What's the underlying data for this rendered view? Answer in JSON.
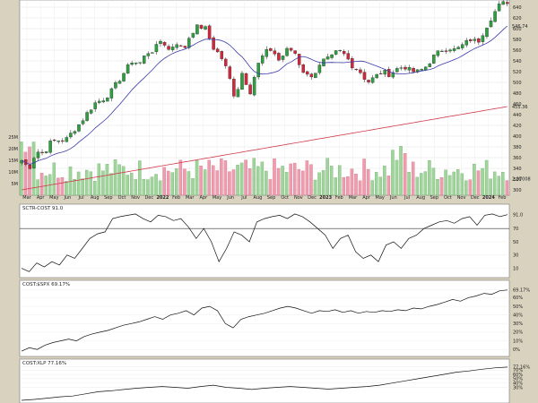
{
  "chart_data": [
    {
      "type": "candlestick",
      "panel": "price",
      "axis_labels": {
        "right": [
          "640",
          "620",
          "600",
          "580",
          "560",
          "540",
          "520",
          "500",
          "480",
          "460",
          "440",
          "420",
          "400",
          "380",
          "360",
          "340",
          "320",
          "300"
        ]
      },
      "ylim": [
        290,
        650
      ],
      "overlays": [
        {
          "name": "sma-50",
          "color": "#3a3aa8",
          "last_value": "546.74"
        },
        {
          "name": "sma-200",
          "color": "#d23a4a",
          "last_value": "455.36"
        }
      ],
      "volume": {
        "ticks_left": [
          "20M",
          "15M",
          "10M",
          "5M",
          "25M"
        ],
        "last_value": "2.07008",
        "tick_labels_left_order": [
          "25M",
          "20M",
          "15M",
          "10M",
          "5M"
        ],
        "ylim": [
          0,
          30
        ]
      },
      "x_labels": [
        "Mar",
        "Apr",
        "May",
        "Jun",
        "Jul",
        "Aug",
        "Sep",
        "Oct",
        "Nov",
        "Dec",
        "2022",
        "Feb",
        "Mar",
        "Apr",
        "May",
        "Jun",
        "Jul",
        "Aug",
        "Sep",
        "Oct",
        "Nov",
        "Dec",
        "2023",
        "Feb",
        "Mar",
        "Apr",
        "May",
        "Jun",
        "Jul",
        "Aug",
        "Sep",
        "Oct",
        "Nov",
        "Dec",
        "2024",
        "Feb"
      ],
      "close_path": [
        355,
        340,
        372,
        368,
        390,
        392,
        393,
        410,
        425,
        445,
        462,
        468,
        480,
        500,
        520,
        540,
        535,
        555,
        560,
        580,
        560,
        575,
        560,
        592,
        605,
        600,
        565,
        550,
        520,
        470,
        520,
        480,
        530,
        555,
        562,
        540,
        560,
        560,
        525,
        510,
        520,
        540,
        545,
        560,
        550,
        530,
        520,
        500,
        510,
        520,
        515,
        525,
        530,
        520,
        520,
        530,
        548,
        560,
        565,
        560,
        570,
        580,
        575,
        600,
        625,
        645,
        650
      ],
      "close_values_note": ""
    },
    {
      "type": "line",
      "panel": "sctr",
      "title": "SCTR-COST 91.0",
      "right_labels": [
        "91.0",
        "70",
        "50",
        "30",
        "10"
      ],
      "reference_line": 70,
      "ylim": [
        0,
        100
      ],
      "values": [
        10,
        5,
        18,
        12,
        20,
        15,
        30,
        25,
        40,
        55,
        62,
        65,
        85,
        88,
        90,
        92,
        85,
        80,
        90,
        88,
        82,
        85,
        72,
        55,
        70,
        50,
        20,
        40,
        65,
        60,
        50,
        80,
        85,
        88,
        90,
        85,
        92,
        88,
        80,
        70,
        60,
        40,
        55,
        60,
        35,
        25,
        30,
        20,
        45,
        50,
        40,
        55,
        60,
        70,
        75,
        80,
        82,
        78,
        85,
        88,
        75,
        90,
        92,
        88,
        91
      ]
    },
    {
      "type": "line",
      "panel": "ratio-spx",
      "title": "COST:$SPX 69.17%",
      "right_labels": [
        "69.17%",
        "60%",
        "50%",
        "40%",
        "30%",
        "20%",
        "10%",
        "0%"
      ],
      "ylim": [
        -5,
        75
      ],
      "values": [
        -2,
        2,
        0,
        5,
        8,
        10,
        12,
        10,
        15,
        18,
        20,
        22,
        25,
        28,
        30,
        32,
        35,
        38,
        35,
        40,
        42,
        45,
        40,
        48,
        50,
        45,
        30,
        25,
        35,
        38,
        40,
        42,
        45,
        48,
        50,
        48,
        45,
        42,
        45,
        44,
        46,
        43,
        45,
        42,
        44,
        43,
        45,
        44,
        46,
        45,
        48,
        47,
        50,
        52,
        55,
        58,
        56,
        60,
        62,
        65,
        64,
        68,
        69
      ]
    },
    {
      "type": "line",
      "panel": "ratio-xlp",
      "title": "COST:XLP 77.16%",
      "right_labels": [
        "77.16%",
        "70%",
        "60%",
        "50%",
        "40%",
        "30%"
      ],
      "ylim": [
        0,
        85
      ],
      "values": [
        0,
        2,
        5,
        8,
        10,
        15,
        20,
        22,
        25,
        28,
        30,
        32,
        30,
        28,
        32,
        35,
        30,
        28,
        25,
        28,
        30,
        32,
        30,
        28,
        26,
        28,
        30,
        32,
        35,
        40,
        45,
        50,
        55,
        60,
        65,
        68,
        72,
        75,
        77
      ]
    }
  ]
}
